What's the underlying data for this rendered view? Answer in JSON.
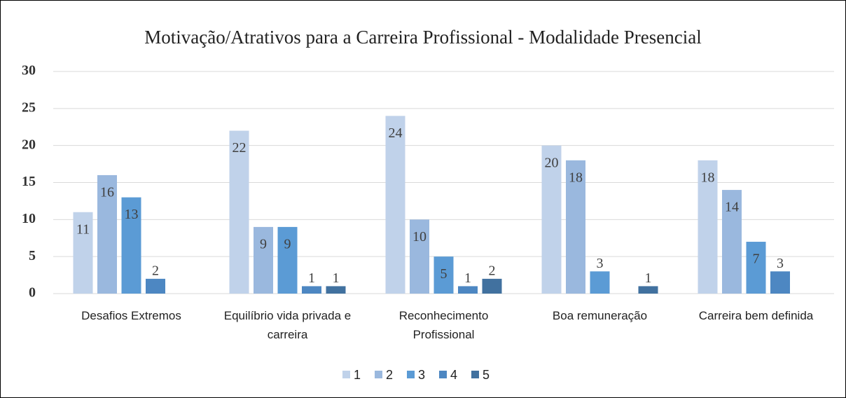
{
  "chart_data": {
    "type": "bar",
    "title": "Motivação/Atrativos para a Carreira Profissional - Modalidade Presencial",
    "categories": [
      "Desafios Extremos",
      "Equilíbrio vida privada e carreira",
      "Reconhecimento Profissional",
      "Boa remuneração",
      "Carreira bem definida"
    ],
    "series": [
      {
        "name": "1",
        "color": "#c0d2ea",
        "values": [
          11,
          22,
          24,
          20,
          18
        ]
      },
      {
        "name": "2",
        "color": "#9ab8de",
        "values": [
          16,
          9,
          10,
          18,
          14
        ]
      },
      {
        "name": "3",
        "color": "#5b9bd5",
        "values": [
          13,
          9,
          5,
          3,
          7
        ]
      },
      {
        "name": "4",
        "color": "#4d87c2",
        "values": [
          2,
          1,
          1,
          null,
          3
        ]
      },
      {
        "name": "5",
        "color": "#41719f",
        "values": [
          null,
          1,
          2,
          1,
          null
        ]
      }
    ],
    "ylim": [
      0,
      30
    ],
    "yticks": [
      0,
      5,
      10,
      15,
      20,
      25,
      30
    ],
    "grid": true,
    "legend": "bottom"
  }
}
